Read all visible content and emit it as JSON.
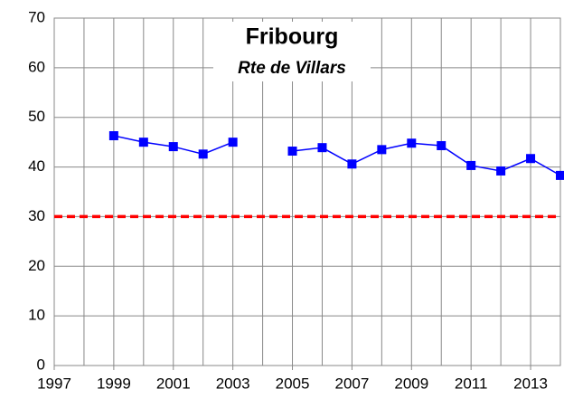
{
  "chart_data": {
    "type": "line",
    "title": "Fribourg",
    "subtitle": "Rte de Villars",
    "x": [
      1999,
      2000,
      2001,
      2002,
      2003,
      2004,
      2005,
      2006,
      2007,
      2008,
      2009,
      2010,
      2011,
      2012,
      2013,
      2014
    ],
    "series": [
      {
        "color": "#0000ff",
        "values": [
          46.3,
          45.0,
          44.1,
          42.6,
          45.0,
          null,
          43.2,
          43.9,
          40.6,
          43.5,
          44.8,
          44.3,
          40.3,
          39.2,
          41.7,
          38.3
        ]
      }
    ],
    "xlim": [
      1997,
      2014
    ],
    "xticks": [
      1997,
      1999,
      2001,
      2003,
      2005,
      2007,
      2009,
      2011,
      2013
    ],
    "xgrid_step": 1,
    "ylim": [
      0,
      70
    ],
    "yticks": [
      0,
      10,
      20,
      30,
      40,
      50,
      60,
      70
    ],
    "grid": true,
    "reference_line": {
      "value": 30,
      "color": "#ff0000"
    }
  }
}
